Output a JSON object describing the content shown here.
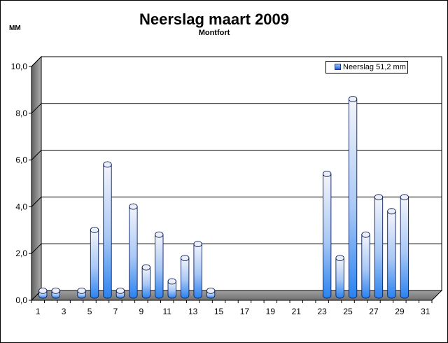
{
  "chart_data": {
    "type": "bar",
    "title": "Neerslag maart 2009",
    "subtitle": "Montfort",
    "ylabel": "MM",
    "xlabel": "",
    "ylim": [
      0,
      10
    ],
    "yticks": [
      "0,0",
      "2,0",
      "4,0",
      "6,0",
      "8,0",
      "10,0"
    ],
    "categories": [
      1,
      2,
      3,
      4,
      5,
      6,
      7,
      8,
      9,
      10,
      11,
      12,
      13,
      14,
      15,
      16,
      17,
      18,
      19,
      20,
      21,
      22,
      23,
      24,
      25,
      26,
      27,
      28,
      29,
      30,
      31
    ],
    "xtick_labels": [
      "1",
      "3",
      "5",
      "7",
      "9",
      "11",
      "13",
      "15",
      "17",
      "19",
      "21",
      "23",
      "25",
      "27",
      "29",
      "31"
    ],
    "series": [
      {
        "name": "Neerslag 51,2 mm",
        "values": [
          0.2,
          0.2,
          0,
          0.2,
          2.8,
          5.6,
          0.2,
          3.8,
          1.2,
          2.6,
          0.6,
          1.6,
          2.2,
          0.2,
          0,
          0,
          0,
          0,
          0,
          0,
          0,
          0,
          5.2,
          1.6,
          8.4,
          2.6,
          4.2,
          3.6,
          4.2,
          0,
          0
        ]
      }
    ],
    "legend_position": "top-right",
    "grid": true,
    "colors": {
      "bar_top": "#f2f2fa",
      "bar_bottom": "#2a82f0",
      "wall": "#ffffff",
      "floor": "#8c8c8c"
    }
  }
}
